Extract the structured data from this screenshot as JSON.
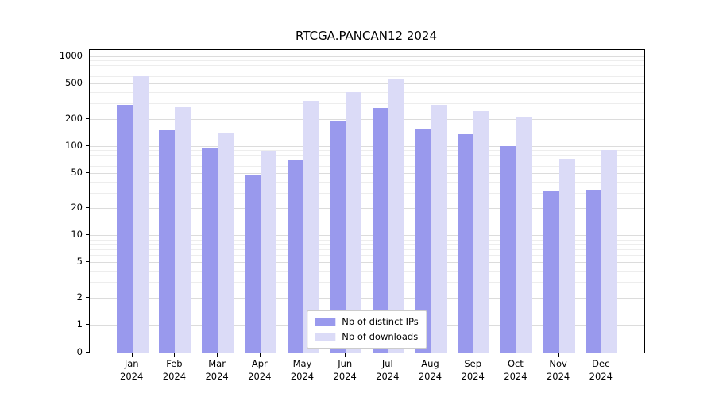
{
  "chart_data": {
    "type": "bar",
    "title": "RTCGA.PANCAN12 2024",
    "categories": [
      "Jan 2024",
      "Feb 2024",
      "Mar 2024",
      "Apr 2024",
      "May 2024",
      "Jun 2024",
      "Jul 2024",
      "Aug 2024",
      "Sep 2024",
      "Oct 2024",
      "Nov 2024",
      "Dec 2024"
    ],
    "series": [
      {
        "name": "Nb of distinct IPs",
        "color": "#9999ed",
        "values": [
          290,
          150,
          93,
          47,
          70,
          190,
          265,
          155,
          135,
          100,
          31,
          32
        ]
      },
      {
        "name": "Nb of downloads",
        "color": "#dbdbf7",
        "values": [
          600,
          270,
          140,
          88,
          320,
          400,
          560,
          290,
          245,
          210,
          72,
          90
        ]
      }
    ],
    "yticks": [
      1000,
      500,
      200,
      100,
      50,
      20,
      10,
      5,
      2,
      1,
      0
    ],
    "yscale": "log-with-zero",
    "ylim": [
      0,
      1000
    ],
    "xlabel": "",
    "ylabel": "",
    "grid": "horizontal-major-and-minor",
    "legend_position": "bottom-center"
  }
}
